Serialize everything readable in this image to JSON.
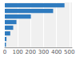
{
  "chart_data": {
    "type": "bar",
    "orientation": "horizontal",
    "categories": [
      null,
      null,
      null,
      null,
      null,
      null,
      null,
      null
    ],
    "values": [
      462,
      374,
      202,
      90,
      65,
      42,
      13,
      9
    ],
    "color": "#2f7bbf",
    "xlim": [
      0,
      520
    ],
    "xticks": [
      0,
      100,
      200,
      300,
      400,
      500
    ],
    "grid": true,
    "tick_labels": "x"
  }
}
